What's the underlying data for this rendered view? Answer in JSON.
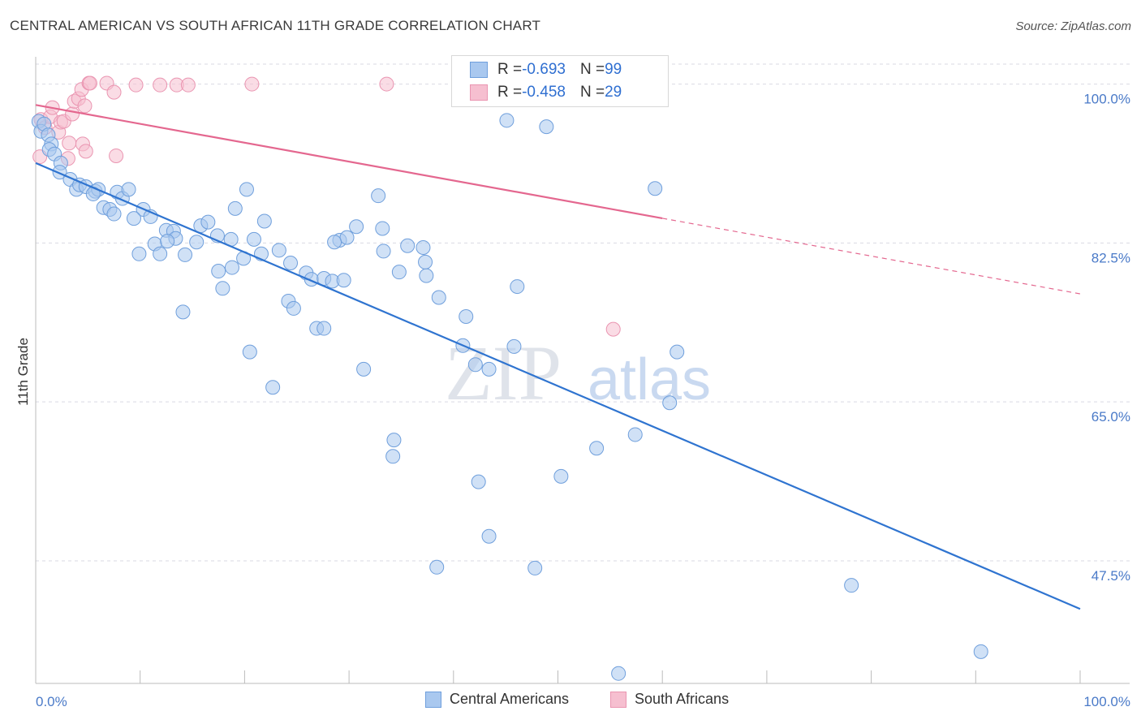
{
  "title": "CENTRAL AMERICAN VS SOUTH AFRICAN 11TH GRADE CORRELATION CHART",
  "source": "Source: ZipAtlas.com",
  "watermark": {
    "zip": "ZIP",
    "atlas": "atlas"
  },
  "colors": {
    "blue_fill": "#a9c8ef",
    "blue_stroke": "#6f9fdc",
    "blue_line": "#2f74d0",
    "pink_fill": "#f6bfd0",
    "pink_stroke": "#ea95b1",
    "pink_line": "#e4678f",
    "grid": "#d9d9e3",
    "axis_label": "#4a7ac8"
  },
  "legend": {
    "rows": [
      {
        "r_label": "R = ",
        "r_value": "-0.693",
        "n_label": "N = ",
        "n_value": "99",
        "color": "blue"
      },
      {
        "r_label": "R = ",
        "r_value": "-0.458",
        "n_label": "N = ",
        "n_value": "29",
        "color": "pink"
      }
    ]
  },
  "bottom_legend": {
    "series1": "Central Americans",
    "series2": "South Africans"
  },
  "chart_data": {
    "type": "scatter",
    "title": "CENTRAL AMERICAN VS SOUTH AFRICAN 11TH GRADE CORRELATION CHART",
    "xlabel": "",
    "ylabel": "11th Grade",
    "xlim": [
      0,
      100
    ],
    "ylim": [
      34,
      103
    ],
    "x_tick_labels": [
      "0.0%",
      "100.0%"
    ],
    "y_ticks": [
      {
        "value": 100,
        "label": "100.0%"
      },
      {
        "value": 82.5,
        "label": "82.5%"
      },
      {
        "value": 65,
        "label": "65.0%"
      },
      {
        "value": 47.5,
        "label": "47.5%"
      }
    ],
    "grid": true,
    "legend_position": "top-center",
    "series": [
      {
        "name": "Central Americans",
        "color": "blue",
        "trend": {
          "x": [
            0,
            100
          ],
          "y": [
            91.3,
            42.2
          ],
          "dashed_from": null
        },
        "points": [
          [
            0.3,
            95.9
          ],
          [
            0.5,
            94.8
          ],
          [
            0.8,
            95.6
          ],
          [
            1.2,
            94.4
          ],
          [
            1.5,
            93.4
          ],
          [
            1.3,
            92.8
          ],
          [
            1.8,
            92.3
          ],
          [
            2.4,
            91.3
          ],
          [
            2.3,
            90.3
          ],
          [
            3.3,
            89.5
          ],
          [
            3.9,
            88.4
          ],
          [
            4.2,
            88.9
          ],
          [
            4.8,
            88.7
          ],
          [
            5.7,
            88.2
          ],
          [
            6,
            88.4
          ],
          [
            5.5,
            87.9
          ],
          [
            7.8,
            88.1
          ],
          [
            8.3,
            87.4
          ],
          [
            8.9,
            88.4
          ],
          [
            6.5,
            86.4
          ],
          [
            7.1,
            86.2
          ],
          [
            7.5,
            85.7
          ],
          [
            10.3,
            86.2
          ],
          [
            11,
            85.4
          ],
          [
            9.4,
            85.2
          ],
          [
            12.5,
            83.9
          ],
          [
            13.2,
            83.8
          ],
          [
            13.4,
            83
          ],
          [
            15.8,
            84.4
          ],
          [
            16.5,
            84.8
          ],
          [
            17.4,
            83.3
          ],
          [
            19.1,
            86.3
          ],
          [
            20.2,
            88.4
          ],
          [
            21.9,
            84.9
          ],
          [
            20.9,
            82.9
          ],
          [
            18.7,
            82.9
          ],
          [
            11.4,
            82.4
          ],
          [
            12.6,
            82.7
          ],
          [
            15.4,
            82.6
          ],
          [
            9.9,
            81.3
          ],
          [
            11.9,
            81.3
          ],
          [
            14.3,
            81.2
          ],
          [
            17.5,
            79.4
          ],
          [
            18.8,
            79.8
          ],
          [
            19.9,
            80.8
          ],
          [
            21.6,
            81.3
          ],
          [
            23.3,
            81.7
          ],
          [
            24.4,
            80.3
          ],
          [
            25.9,
            79.2
          ],
          [
            26.4,
            78.5
          ],
          [
            27.6,
            78.6
          ],
          [
            28.4,
            78.3
          ],
          [
            24.2,
            76.1
          ],
          [
            24.7,
            75.3
          ],
          [
            26.9,
            73.1
          ],
          [
            27.6,
            73.1
          ],
          [
            29.5,
            78.4
          ],
          [
            29.1,
            82.8
          ],
          [
            29.8,
            83.1
          ],
          [
            28.6,
            82.6
          ],
          [
            30.7,
            84.3
          ],
          [
            32.8,
            87.7
          ],
          [
            33.3,
            81.6
          ],
          [
            33.2,
            84.1
          ],
          [
            34.8,
            79.3
          ],
          [
            35.6,
            82.2
          ],
          [
            37.1,
            82.0
          ],
          [
            37.4,
            78.9
          ],
          [
            37.3,
            80.4
          ],
          [
            38.6,
            76.5
          ],
          [
            41.2,
            74.4
          ],
          [
            40.9,
            71.2
          ],
          [
            42.1,
            69.1
          ],
          [
            43.4,
            68.6
          ],
          [
            45.8,
            71.1
          ],
          [
            46.1,
            77.7
          ],
          [
            55.2,
            99.5
          ],
          [
            45.1,
            96.0
          ],
          [
            48.9,
            95.3
          ],
          [
            59.3,
            88.5
          ],
          [
            61.4,
            70.5
          ],
          [
            60.7,
            64.9
          ],
          [
            57.4,
            61.4
          ],
          [
            53.7,
            59.9
          ],
          [
            50.3,
            56.8
          ],
          [
            47.8,
            46.7
          ],
          [
            43.4,
            50.2
          ],
          [
            42.4,
            56.2
          ],
          [
            38.4,
            46.8
          ],
          [
            34.2,
            59.0
          ],
          [
            31.4,
            68.6
          ],
          [
            22.7,
            66.6
          ],
          [
            20.5,
            70.5
          ],
          [
            14.1,
            74.9
          ],
          [
            17.9,
            77.5
          ],
          [
            78.1,
            44.8
          ],
          [
            90.5,
            37.5
          ],
          [
            55.8,
            35.1
          ],
          [
            34.3,
            60.8
          ]
        ]
      },
      {
        "name": "South Africans",
        "color": "pink",
        "trend": {
          "x": [
            0,
            100
          ],
          "y": [
            97.7,
            76.9
          ],
          "dashed_from": 60
        },
        "points": [
          [
            0.4,
            92.0
          ],
          [
            0.5,
            96.1
          ],
          [
            0.9,
            95.2
          ],
          [
            1.4,
            96.4
          ],
          [
            1.6,
            97.4
          ],
          [
            2.2,
            94.7
          ],
          [
            2.4,
            95.8
          ],
          [
            2.7,
            95.9
          ],
          [
            3.1,
            91.8
          ],
          [
            3.2,
            93.5
          ],
          [
            3.5,
            96.7
          ],
          [
            3.7,
            98.1
          ],
          [
            4.1,
            98.4
          ],
          [
            4.4,
            99.4
          ],
          [
            4.7,
            97.6
          ],
          [
            4.5,
            93.4
          ],
          [
            4.8,
            92.6
          ],
          [
            5.1,
            100.1
          ],
          [
            5.2,
            100.1
          ],
          [
            6.8,
            100.1
          ],
          [
            7.7,
            92.1
          ],
          [
            7.5,
            99.1
          ],
          [
            9.6,
            99.9
          ],
          [
            11.9,
            99.9
          ],
          [
            13.5,
            99.9
          ],
          [
            14.6,
            99.9
          ],
          [
            20.7,
            100.0
          ],
          [
            33.6,
            100.0
          ],
          [
            55.3,
            73.0
          ]
        ]
      }
    ]
  }
}
